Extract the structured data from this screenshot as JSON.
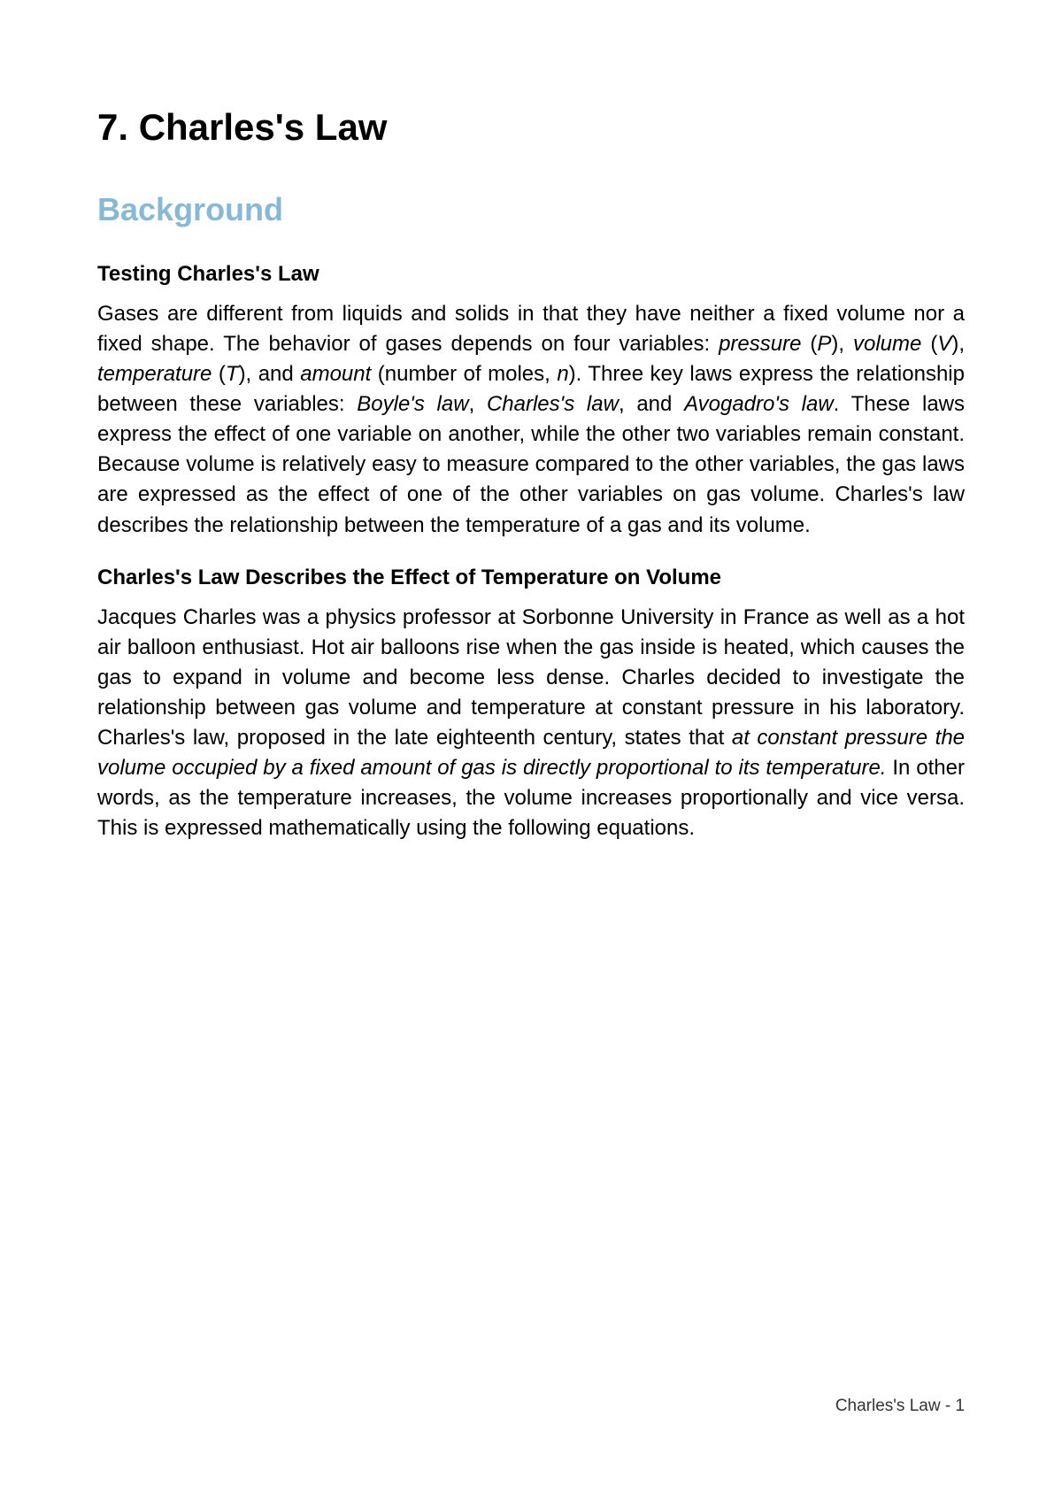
{
  "title": "7. Charles's Law",
  "section_heading": "Background",
  "sub1_title": "Testing Charles's Law",
  "p1a": "Gases are different from liquids and solids in that they have neither a fixed volume nor a fixed shape. The behavior of gases depends on four variables: ",
  "p1_pressure": "pressure",
  "p1_p": " (",
  "p1_P": "P",
  "p1_pv": "), ",
  "p1_volume": "volume",
  "p1_V": "V",
  "p1_vt": "), ",
  "p1_temperature": "temperature",
  "p1_Tlp": " (",
  "p1_T": "T",
  "p1_tand": "), and ",
  "p1_amount": "amount",
  "p1_nmoles": " (number of moles, ",
  "p1_n": "n",
  "p1_after_n": "). Three key laws express the relationship between these variables: ",
  "p1_boyle": "Boyle's law",
  "p1_comma1": ", ",
  "p1_charles": "Charles's law",
  "p1_and": ", and ",
  "p1_avogadro": "Avogadro's law",
  "p1_end": ". These laws express the effect of one variable on another, while the other two variables remain constant. Because volume is relatively easy to measure compared to the other variables, the gas laws are expressed as the effect of one of the other variables on gas volume. Charles's law describes the relationship between the temperature of a gas and its volume.",
  "sub2_title": "Charles's Law Describes the Effect of Temperature on Volume",
  "p2a": "Jacques Charles was a physics professor at Sorbonne University in France as well as a hot air balloon enthusiast. Hot air balloons rise when the gas inside is heated, which causes the gas to expand in volume and become less dense. Charles decided to investigate the relationship between gas volume and temperature at constant pressure in his laboratory. Charles's law, proposed in the late eighteenth century, states that ",
  "p2_italic": "at constant pressure the volume occupied by a fixed amount of gas is directly proportional to its temperature.",
  "p2b": " In other words, as the temperature increases, the volume increases proportionally and vice versa. This is expressed mathematically using the following equations.",
  "footer": "Charles's Law - 1"
}
